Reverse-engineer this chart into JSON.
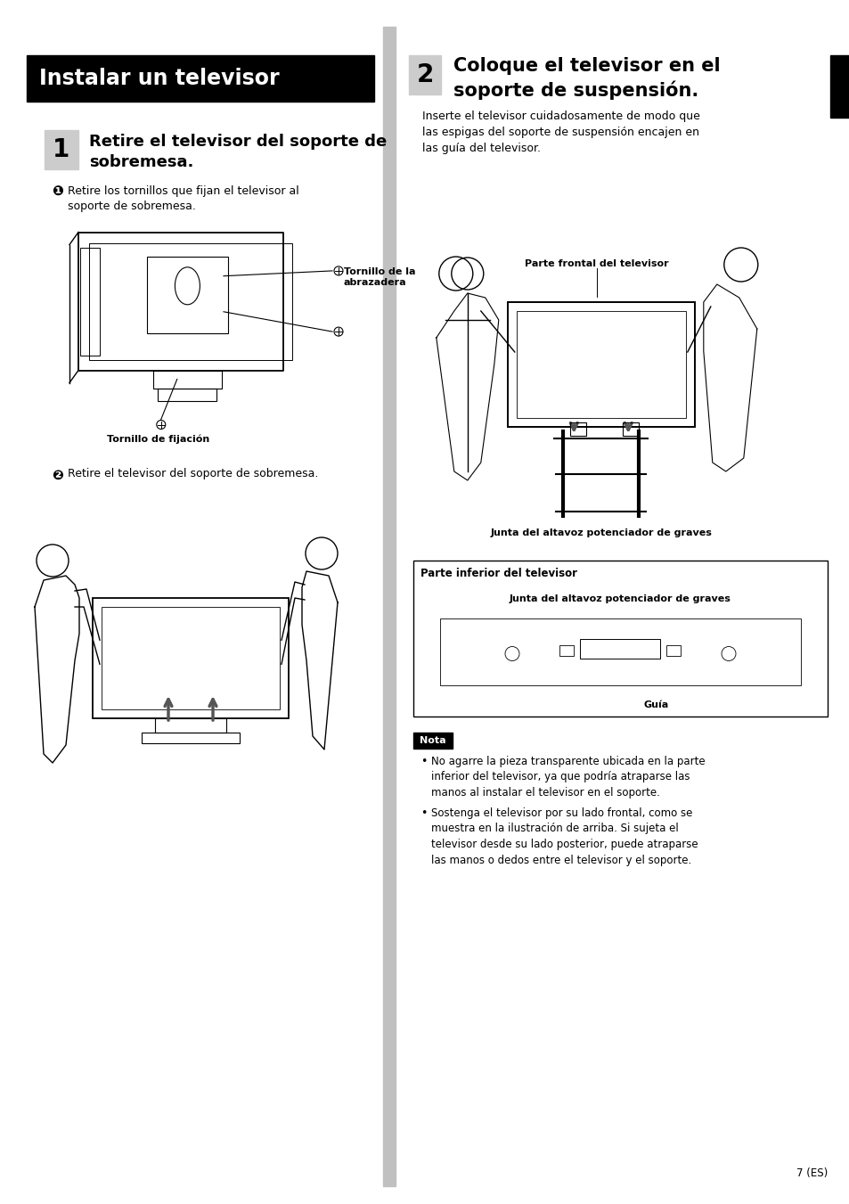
{
  "bg_color": "#ffffff",
  "page_width": 9.54,
  "page_height": 13.51,
  "header_bg": "#000000",
  "header_text": "Instalar un televisor",
  "header_text_color": "#ffffff",
  "step1_number": "1",
  "step1_title": "Retire el televisor del soporte de\nsobremesa.",
  "step1_sub1_bullet": "❶",
  "step1_sub1_text": "Retire los tornillos que fijan el televisor al\nsoporte de sobremesa.",
  "step1_label1": "Tornillo de la\nabrazadera",
  "step1_label2": "Tornillo de fijación",
  "step1_sub2_bullet": "❷",
  "step1_sub2_text": "Retire el televisor del soporte de sobremesa.",
  "step2_number": "2",
  "step2_title": "Coloque el televisor en el\nsoporte de suspensión.",
  "step2_body": "Inserte el televisor cuidadosamente de modo que\nlas espigas del soporte de suspensión encajen en\nlas guía del televisor.",
  "step2_label1": "Parte frontal del televisor",
  "step2_label2": "Junta del altavoz potenciador de graves",
  "step2_box_title": "Parte inferior del televisor",
  "step2_box_label": "Junta del altavoz potenciador de graves",
  "step2_box_guia": "Guía",
  "nota_title": "Nota",
  "nota_bullet1": "No agarre la pieza transparente ubicada en la parte\ninferior del televisor, ya que podría atraparse las\nmanos al instalar el televisor en el soporte.",
  "nota_bullet2": "Sostenga el televisor por su lado frontal, como se\nmuestra en la ilustración de arriba. Si sujeta el\ntelevisor desde su lado posterior, puede atraparse\nlas manos o dedos entre el televisor y el soporte.",
  "page_number": "7 (ES)"
}
